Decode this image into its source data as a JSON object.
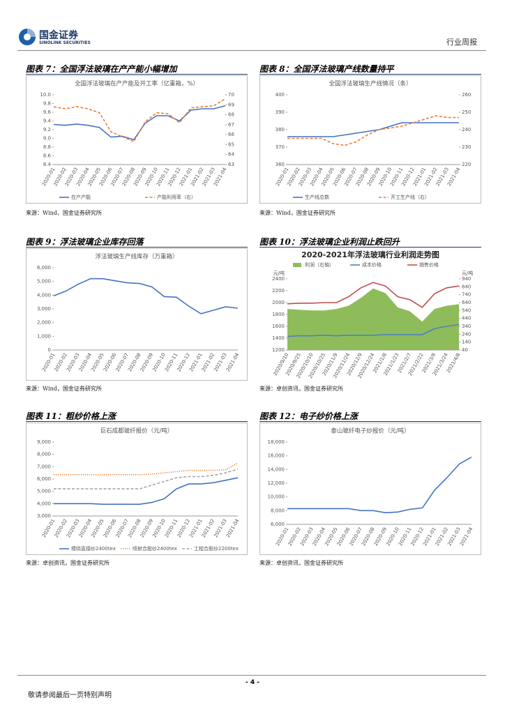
{
  "header": {
    "company": "国金证券",
    "company_en": "SINOLINK SECURITIES",
    "report_type": "行业周报"
  },
  "panels": [
    {
      "caption": "图表 7：全国浮法玻璃在产产能小幅增加",
      "source": "来源：Wind，国金证券研究所"
    },
    {
      "caption": "图表 8：全国浮法玻璃产线数量持平",
      "source": "来源：Wind，国金证券研究所"
    },
    {
      "caption": "图表 9：浮法玻璃企业库存回落",
      "source": "来源：Wind，国金证券研究所"
    },
    {
      "caption": "图表 10：浮法玻璃企业利润止跌回升",
      "source": "来源：卓创资讯，国金证券研究所"
    },
    {
      "caption": "图表 11：粗纱价格上涨",
      "source": "来源：卓创资讯，国金证券研究所"
    },
    {
      "caption": "图表 12：电子纱价格上涨",
      "source": "来源：卓创资讯，国金证券研究所"
    }
  ],
  "chart_data": [
    {
      "type": "line",
      "title": "全国浮法玻璃在产产能及开工率（亿重箱，%）",
      "categories": [
        "2020-01",
        "2020-02",
        "2020-03",
        "2020-04",
        "2020-05",
        "2020-06",
        "2020-07",
        "2020-08",
        "2020-09",
        "2020-10",
        "2020-11",
        "2020-12",
        "2021-01",
        "2021-02",
        "2021-03",
        "2021-04"
      ],
      "ylim": [
        8.4,
        10
      ],
      "yticks": [
        8.4,
        8.6,
        8.8,
        {
          "value": 9,
          "label": "9.0"
        },
        9.2,
        9.4,
        9.6,
        9.8,
        {
          "value": 10,
          "label": "10.0"
        }
      ],
      "y2lim": [
        63,
        70
      ],
      "y2ticks": [
        63,
        64,
        65,
        66,
        67,
        68,
        69,
        70
      ],
      "legend": "bottom",
      "series": [
        {
          "name": "在产产能",
          "color": "#4472c4",
          "style": "solid",
          "values": [
            9.32,
            9.3,
            9.33,
            9.3,
            9.25,
            9.03,
            9.05,
            8.97,
            9.35,
            9.52,
            9.52,
            9.4,
            9.65,
            9.68,
            9.68,
            9.75
          ]
        },
        {
          "name": "产能利用率（右）",
          "color": "#ed7d31",
          "style": "dashed",
          "axis": "y2",
          "values": [
            68.8,
            68.6,
            68.8,
            68.6,
            68.2,
            66.3,
            65.8,
            65.3,
            67.3,
            68.2,
            68.1,
            67.2,
            68.7,
            68.8,
            68.9,
            69.6
          ]
        }
      ]
    },
    {
      "type": "line",
      "title": "全国浮法玻璃生产线情况（条）",
      "categories": [
        "2020-01",
        "2020-02",
        "2020-03",
        "2020-04",
        "2020-05",
        "2020-06",
        "2020-07",
        "2020-08",
        "2020-09",
        "2020-10",
        "2020-11",
        "2020-12",
        "2021-01",
        "2021-02",
        "2021-03",
        "2021-04"
      ],
      "ylim": [
        360,
        400
      ],
      "yticks": [
        360,
        370,
        380,
        390,
        400
      ],
      "y2lim": [
        220,
        260
      ],
      "y2ticks": [
        220,
        230,
        240,
        250,
        260
      ],
      "legend": "bottom",
      "series": [
        {
          "name": "生产线总数",
          "color": "#4472c4",
          "style": "solid",
          "values": [
            376,
            376,
            376,
            376,
            376,
            377,
            378,
            379,
            380,
            382,
            384,
            384,
            384,
            384,
            384,
            384
          ]
        },
        {
          "name": "开工生产线（右）",
          "color": "#ed7d31",
          "style": "dashed",
          "axis": "y2",
          "values": [
            235,
            235,
            235,
            235,
            232,
            231,
            233,
            237,
            240,
            241,
            242,
            244,
            246,
            248,
            247,
            247
          ]
        }
      ]
    },
    {
      "type": "line",
      "title": "浮法玻璃生产线库存（万重箱）",
      "categories": [
        "2020-01",
        "2020-02",
        "2020-03",
        "2020-04",
        "2020-05",
        "2020-06",
        "2020-07",
        "2020-08",
        "2020-09",
        "2020-10",
        "2020-11",
        "2020-12",
        "2021-01",
        "2021-02",
        "2021-03",
        "2021-04"
      ],
      "ylim": [
        0,
        6000
      ],
      "yticks": [
        0,
        {
          "value": 1000,
          "label": "1,000"
        },
        {
          "value": 2000,
          "label": "2,000"
        },
        {
          "value": 3000,
          "label": "3,000"
        },
        {
          "value": 4000,
          "label": "4,000"
        },
        {
          "value": 5000,
          "label": "5,000"
        },
        {
          "value": 6000,
          "label": "6,000"
        }
      ],
      "color": "#4472c4",
      "values": [
        3950,
        4300,
        4800,
        5200,
        5200,
        5050,
        4900,
        4850,
        4600,
        3900,
        3850,
        3200,
        2650,
        2900,
        3150,
        3050
      ]
    },
    {
      "type": "line",
      "title": "2020-2021年浮法玻璃行业利润走势图",
      "ylabel": "元/吨",
      "y2label": "元/吨",
      "categories": [
        "2020/9/10",
        "2020/9/25",
        "2020/10/10",
        "2020/10/25",
        "2020/11/9",
        "2020/11/24",
        "2020/12/9",
        "2020/12/24",
        "2021/1/8",
        "2021/1/23",
        "2021/2/7",
        "2021/2/22",
        "2021/3/9",
        "2021/3/24",
        "2021/4/8"
      ],
      "ylim": [
        1200,
        2400
      ],
      "yticks": [
        1200,
        1400,
        1600,
        1800,
        2000,
        2200,
        2400
      ],
      "y2lim": [
        40,
        940
      ],
      "y2ticks": [
        40,
        140,
        240,
        340,
        440,
        540,
        640,
        740,
        840,
        940
      ],
      "legend": "top",
      "series": [
        {
          "name": "利润（右轴）",
          "color": "#8fbc5a",
          "style": "area",
          "axis": "y2",
          "values": [
            560,
            550,
            540,
            540,
            560,
            600,
            700,
            820,
            760,
            580,
            530,
            400,
            560,
            600,
            620
          ]
        },
        {
          "name": "成本价格",
          "color": "#4f81bd",
          "style": "solid",
          "values": [
            1430,
            1440,
            1440,
            1450,
            1440,
            1450,
            1450,
            1450,
            1460,
            1460,
            1460,
            1460,
            1560,
            1600,
            1630
          ]
        },
        {
          "name": "销售价格",
          "color": "#c0504d",
          "style": "solid",
          "values": [
            1980,
            1990,
            1990,
            2000,
            2000,
            2100,
            2250,
            2340,
            2280,
            2100,
            2050,
            1920,
            2150,
            2250,
            2280
          ]
        }
      ]
    },
    {
      "type": "line",
      "title": "巨石成都玻纤报价（元/吨）",
      "categories": [
        "2020-01",
        "2020-02",
        "2020-03",
        "2020-04",
        "2020-05",
        "2020-06",
        "2020-07",
        "2020-08",
        "2020-09",
        "2020-10",
        "2020-11",
        "2020-12",
        "2021-01",
        "2021-02",
        "2021-03",
        "2021-04"
      ],
      "ylim": [
        3000,
        9000
      ],
      "yticks": [
        {
          "value": 3000,
          "label": "3,000"
        },
        {
          "value": 4000,
          "label": "4,000"
        },
        {
          "value": 5000,
          "label": "5,000"
        },
        {
          "value": 6000,
          "label": "6,000"
        },
        {
          "value": 7000,
          "label": "7,000"
        },
        {
          "value": 8000,
          "label": "8,000"
        },
        {
          "value": 9000,
          "label": "9,000"
        }
      ],
      "legend": "bottom",
      "series": [
        {
          "name": "缠绕直接纱2400tex",
          "color": "#4472c4",
          "style": "solid",
          "values": [
            4000,
            4000,
            4000,
            4000,
            3950,
            3950,
            3950,
            3950,
            4100,
            4400,
            5200,
            5600,
            5600,
            5700,
            5900,
            6100
          ]
        },
        {
          "name": "喷射合股纱2400tex",
          "color": "#ed7d31",
          "style": "dotted",
          "values": [
            6350,
            6350,
            6350,
            6350,
            6350,
            6350,
            6350,
            6350,
            6400,
            6500,
            6600,
            6700,
            6700,
            6700,
            6750,
            7300
          ]
        },
        {
          "name": "工程合股纱2200tex",
          "color": "#a5a5a5",
          "style": "dashed",
          "values": [
            5200,
            5200,
            5200,
            5200,
            5200,
            5200,
            5200,
            5200,
            5500,
            5800,
            6100,
            6200,
            6200,
            6300,
            6500,
            6800
          ]
        }
      ]
    },
    {
      "type": "line",
      "title": "泰山玻纤电子纱报价（元/吨）",
      "categories": [
        "2020-01",
        "2020-02",
        "2020-03",
        "2020-04",
        "2020-05",
        "2020-06",
        "2020-07",
        "2020-08",
        "2020-09",
        "2020-10",
        "2020-11",
        "2020-12",
        "2021-01",
        "2021-02",
        "2021-03",
        "2021-04"
      ],
      "ylim": [
        6000,
        18000
      ],
      "yticks": [
        {
          "value": 6000,
          "label": "6,000"
        },
        {
          "value": 8000,
          "label": "8,000"
        },
        {
          "value": 10000,
          "label": "10,000"
        },
        {
          "value": 12000,
          "label": "12,000"
        },
        {
          "value": 14000,
          "label": "14,000"
        },
        {
          "value": 16000,
          "label": "16,000"
        },
        {
          "value": 18000,
          "label": "18,000"
        }
      ],
      "color": "#4472c4",
      "values": [
        8300,
        8300,
        8300,
        8300,
        8300,
        8300,
        8000,
        8000,
        7700,
        7800,
        8200,
        8400,
        11000,
        12800,
        14800,
        15800
      ]
    }
  ],
  "footer": {
    "page": "- 4 -",
    "disclaimer": "敬请参阅最后一页特别声明"
  }
}
